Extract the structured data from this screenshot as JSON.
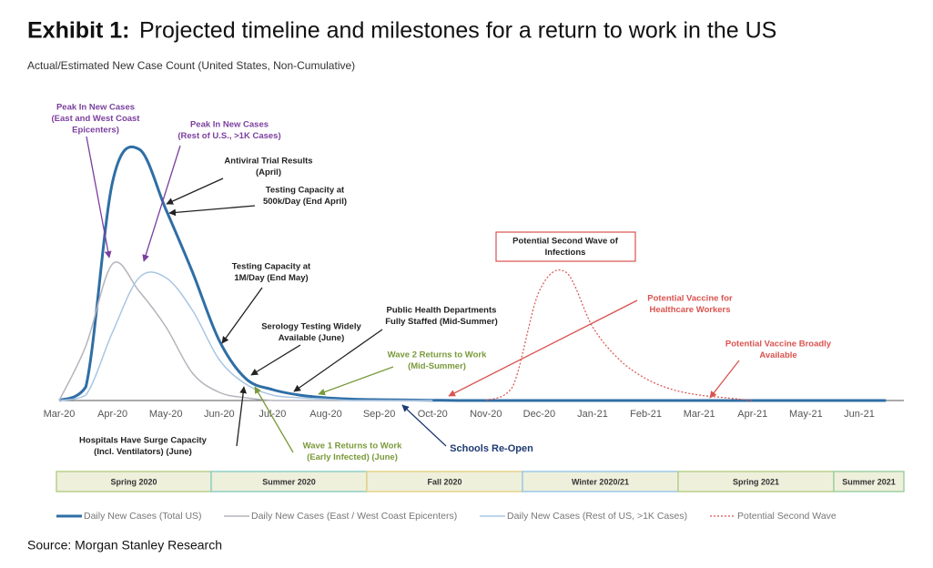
{
  "chart_data": {
    "type": "line",
    "title_label": "Exhibit 1:",
    "title": "Projected timeline and milestones for a return to work in the US",
    "subtitle": "Actual/Estimated New Case Count (United States, Non-Cumulative)",
    "categories": [
      "Mar-20",
      null,
      "Apr-20",
      null,
      "May-20",
      null,
      "Jun-20",
      null,
      "Jul-20",
      null,
      "Aug-20",
      null,
      "Sep-20",
      null,
      "Oct-20",
      null,
      "Nov-20",
      null,
      "Dec-20",
      null,
      "Jan-21",
      null,
      "Feb-21",
      null,
      "Mar-21",
      null,
      "Apr-21",
      null,
      "May-21",
      null,
      "Jun-21",
      null
    ],
    "ylim": [
      0,
      100
    ],
    "series": [
      {
        "name": "Daily New Cases (Total US)",
        "color": "#2f6ea5",
        "line_width": 3,
        "dashed": false,
        "values": [
          0,
          5,
          80,
          92,
          70,
          47,
          22,
          8,
          4,
          2,
          1,
          0.5,
          0.3,
          0.2,
          0.1,
          0,
          0,
          0,
          0,
          0,
          0,
          0,
          0,
          0,
          0,
          0,
          0,
          0,
          0,
          0,
          0,
          0
        ]
      },
      {
        "name": "Daily New Cases (East / West Coast Epicenters)",
        "color": "#b4b4bc",
        "line_width": 1.5,
        "dashed": false,
        "values": [
          0,
          20,
          50,
          40,
          27,
          10,
          3,
          1,
          0,
          0,
          0,
          0,
          0,
          0,
          0,
          null,
          null,
          null,
          null,
          null,
          null,
          null,
          null,
          null,
          null,
          null,
          null,
          null,
          null,
          null,
          null,
          null
        ]
      },
      {
        "name": "Daily New Cases (Rest of US, >1K Cases)",
        "color": "#a9c6e3",
        "line_width": 1.5,
        "dashed": false,
        "values": [
          0,
          2,
          25,
          45,
          45,
          33,
          15,
          6,
          2,
          1,
          0.5,
          0,
          0,
          0,
          0,
          null,
          null,
          null,
          null,
          null,
          null,
          null,
          null,
          null,
          null,
          null,
          null,
          null,
          null,
          null,
          null,
          null
        ]
      },
      {
        "name": "Potential Second Wave",
        "color": "#d9534f",
        "line_width": 1.2,
        "dashed": true,
        "values": [
          null,
          null,
          null,
          null,
          null,
          null,
          null,
          null,
          null,
          null,
          null,
          null,
          null,
          null,
          null,
          null,
          0,
          5,
          40,
          47,
          27,
          15,
          8,
          4,
          2,
          1,
          0,
          null,
          null,
          null,
          null,
          null
        ]
      }
    ],
    "annotations": [
      {
        "lines": [
          "Peak In New Cases",
          "(East and West Coast",
          "Epicenters)"
        ],
        "color": "#7b3f9e"
      },
      {
        "lines": [
          "Peak In New Cases",
          "(Rest of U.S., >1K Cases)"
        ],
        "color": "#7b3f9e"
      },
      {
        "lines": [
          "Antiviral  Trial Results",
          "(April)"
        ],
        "color": "#222222"
      },
      {
        "lines": [
          "Testing Capacity at",
          "500k/Day (End April)"
        ],
        "color": "#222222"
      },
      {
        "lines": [
          "Testing Capacity at",
          "1M/Day (End May)"
        ],
        "color": "#222222"
      },
      {
        "lines": [
          "Serology Testing Widely",
          "Available (June)"
        ],
        "color": "#222222"
      },
      {
        "lines": [
          "Public Health Departments",
          "Fully Staffed (Mid-Summer)"
        ],
        "color": "#222222"
      },
      {
        "lines": [
          "Wave 2 Returns to Work",
          "(Mid-Summer)"
        ],
        "color": "#7a9a3a"
      },
      {
        "lines": [
          "Hospitals Have Surge Capacity",
          "(Incl. Ventilators) (June)"
        ],
        "color": "#222222"
      },
      {
        "lines": [
          "Wave 1 Returns to Work",
          "(Early Infected) (June)"
        ],
        "color": "#7a9a3a"
      },
      {
        "lines": [
          "Schools Re-Open"
        ],
        "color": "#1f3b73"
      },
      {
        "lines": [
          "Potential Second Wave of",
          "Infections"
        ],
        "color": "#222222"
      },
      {
        "lines": [
          "Potential Vaccine for",
          "Healthcare Workers"
        ],
        "color": "#d9534f"
      },
      {
        "lines": [
          "Potential Vaccine Broadly",
          "Available"
        ],
        "color": "#d9534f"
      }
    ],
    "seasons": [
      {
        "label": "Spring 2020",
        "color": "#b9cf8a"
      },
      {
        "label": "Summer 2020",
        "color": "#8fcfc4"
      },
      {
        "label": "Fall 2020",
        "color": "#e3d28a"
      },
      {
        "label": "Winter 2020/21",
        "color": "#9cc7e6"
      },
      {
        "label": "Spring 2021",
        "color": "#b9cf8a"
      },
      {
        "label": "Summer 2021",
        "color": "#9fd0a0"
      }
    ],
    "source": "Source: Morgan Stanley Research"
  }
}
